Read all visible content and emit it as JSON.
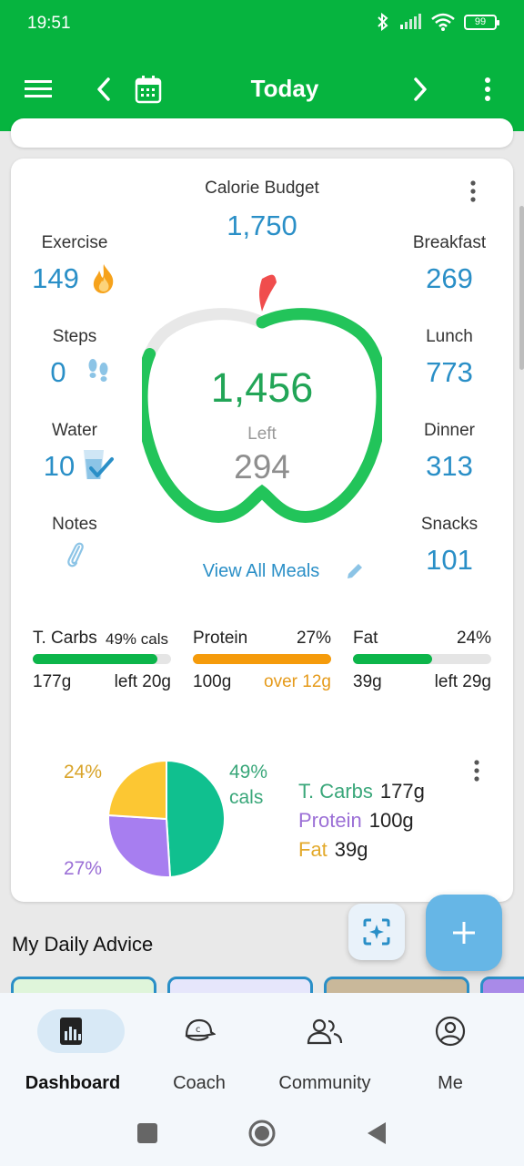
{
  "status": {
    "time": "19:51",
    "battery": "99"
  },
  "appbar": {
    "title": "Today"
  },
  "summary": {
    "budget_label": "Calorie Budget",
    "budget_value": "1,750",
    "eaten": "1,456",
    "left_label": "Left",
    "left_value": "294",
    "view_all": "View All Meals",
    "left_stats": [
      {
        "label": "Exercise",
        "value": "149",
        "icon": "flame-icon"
      },
      {
        "label": "Steps",
        "value": "0",
        "icon": "footprints-icon"
      },
      {
        "label": "Water",
        "value": "10",
        "icon": "water-glass-icon"
      },
      {
        "label": "Notes",
        "value": "",
        "icon": "paperclip-icon"
      }
    ],
    "meals": [
      {
        "label": "Breakfast",
        "value": "269"
      },
      {
        "label": "Lunch",
        "value": "773"
      },
      {
        "label": "Dinner",
        "value": "313"
      },
      {
        "label": "Snacks",
        "value": "101"
      }
    ],
    "progress_fraction": 0.83
  },
  "macros": [
    {
      "name": "T. Carbs",
      "pct": "49% cals",
      "amount": "177g",
      "status": "left 20g",
      "fill": 0.9,
      "color": "#0cb54a",
      "status_color": "#222222"
    },
    {
      "name": "Protein",
      "pct": "27%",
      "amount": "100g",
      "status": "over 12g",
      "fill": 1.0,
      "color": "#f59b0b",
      "status_color": "#e59a1a"
    },
    {
      "name": "Fat",
      "pct": "24%",
      "amount": "39g",
      "status": "left 29g",
      "fill": 0.57,
      "color": "#0cb54a",
      "status_color": "#222222"
    }
  ],
  "pie": {
    "label_fat": "24%",
    "label_protein": "27%",
    "label_carbs_1": "49%",
    "label_carbs_2": "cals",
    "legend": [
      {
        "name": "T. Carbs",
        "grams": "177g",
        "color": "#3aa77a"
      },
      {
        "name": "Protein",
        "grams": "100g",
        "color": "#9b6fd6"
      },
      {
        "name": "Fat",
        "grams": "39g",
        "color": "#e3a92a"
      }
    ]
  },
  "chart_data": {
    "type": "pie",
    "labels": [
      "T. Carbs",
      "Protein",
      "Fat"
    ],
    "values": [
      49,
      27,
      24
    ],
    "colors": [
      "#10c08f",
      "#a77ef0",
      "#fcc733"
    ]
  },
  "advice": {
    "title": "My Daily Advice"
  },
  "nav": [
    {
      "label": "Dashboard",
      "icon": "dashboard-icon"
    },
    {
      "label": "Coach",
      "icon": "coach-icon"
    },
    {
      "label": "Community",
      "icon": "community-icon"
    },
    {
      "label": "Me",
      "icon": "profile-icon"
    }
  ]
}
